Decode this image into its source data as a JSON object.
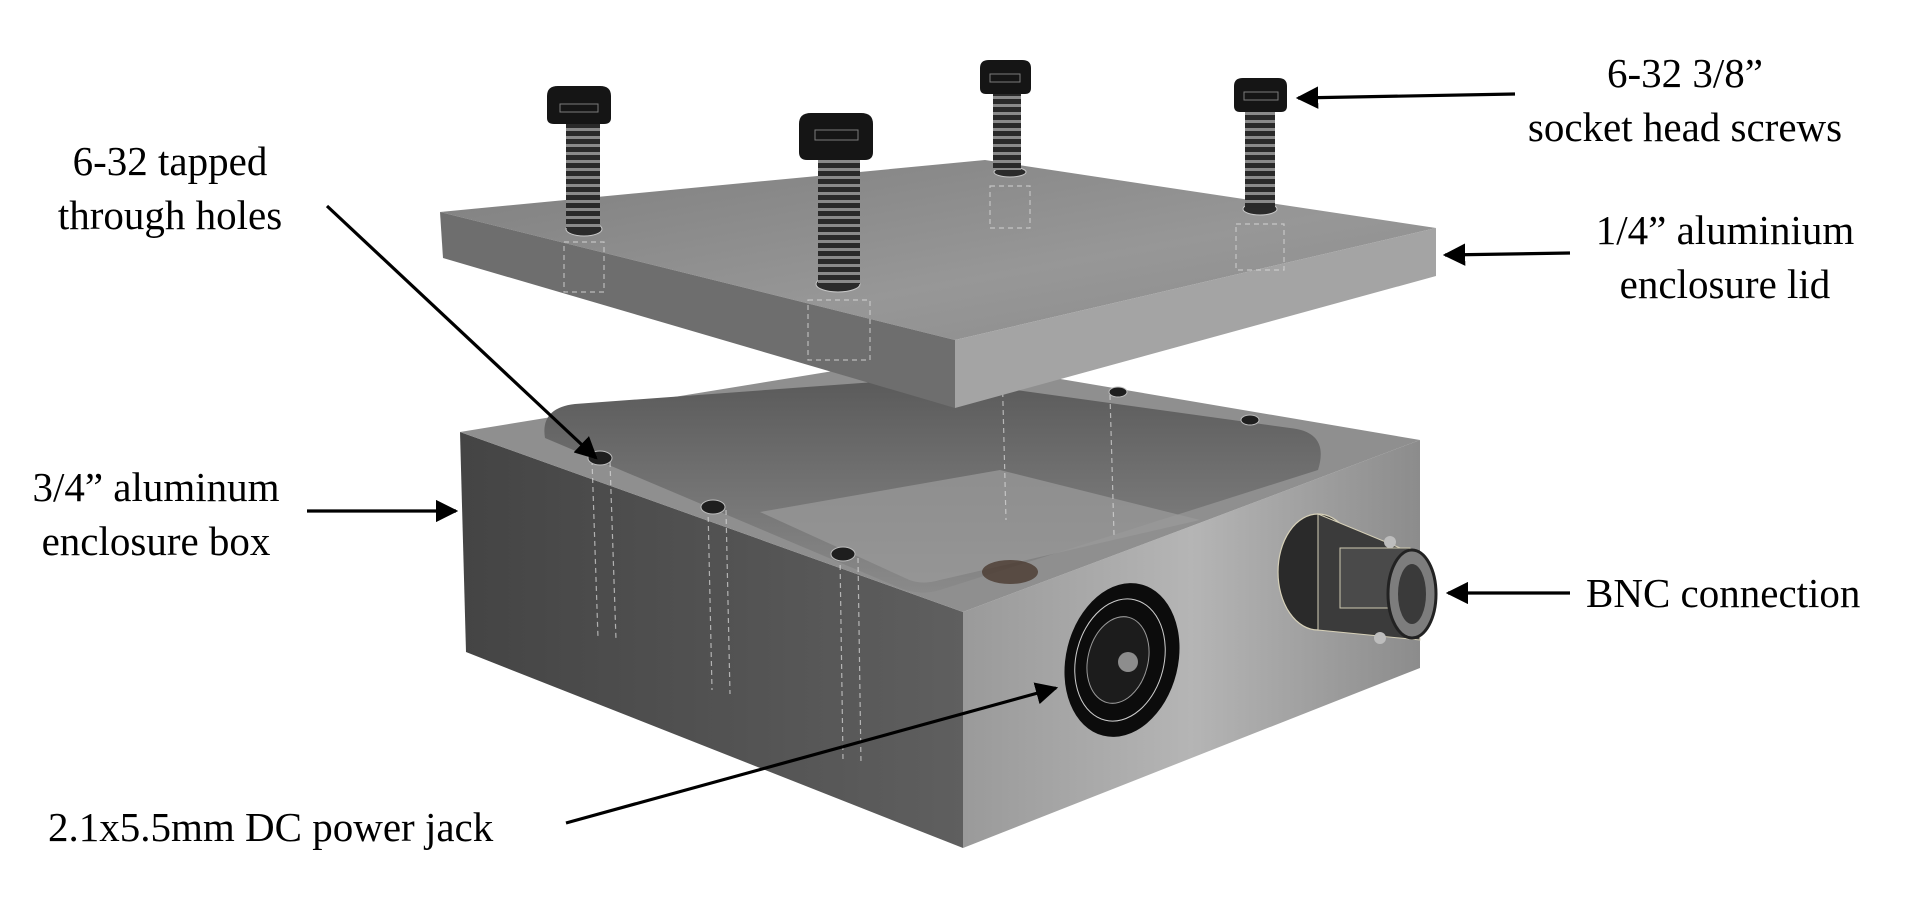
{
  "labels": {
    "screws": {
      "line1": "6-32 3/8”",
      "line2": "socket head screws"
    },
    "tapped_holes": {
      "line1": "6-32 tapped",
      "line2": "through holes"
    },
    "lid": {
      "line1": "1/4” aluminium",
      "line2": "enclosure lid"
    },
    "box": {
      "line1": "3/4” aluminum",
      "line2": "enclosure box"
    },
    "bnc": {
      "line1": "BNC connection"
    },
    "dc_jack": {
      "line1": "2.1x5.5mm DC power jack"
    }
  },
  "colors": {
    "box_top": "#8f8f8f",
    "box_left": "#4e4e4e",
    "box_right": "#a9a9a9",
    "cavity": "#6a6a6a",
    "lid_top": "#8a8a8a",
    "lid_front": "#6e6e6e",
    "lid_side": "#a4a4a4",
    "screw": "#151515",
    "arrow": "#000000"
  }
}
